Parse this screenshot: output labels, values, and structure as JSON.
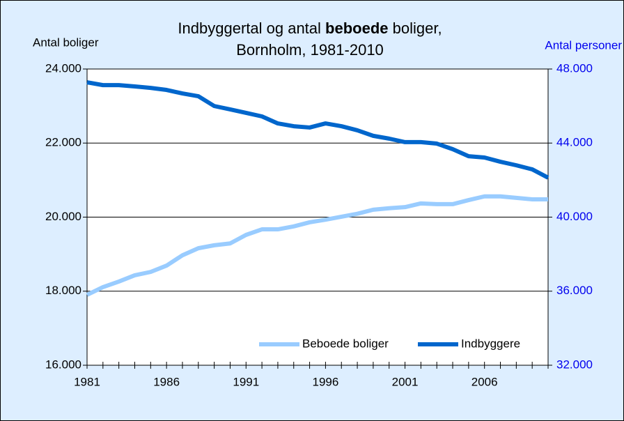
{
  "chart_data": {
    "type": "line",
    "title_parts": [
      "Indbyggertal og antal ",
      "beboede",
      " boliger,"
    ],
    "subtitle": "Bornholm, 1981-2010",
    "y_label": "Antal boliger",
    "y2_label": "Antal personer",
    "x": [
      1981,
      1982,
      1983,
      1984,
      1985,
      1986,
      1987,
      1988,
      1989,
      1990,
      1991,
      1992,
      1993,
      1994,
      1995,
      1996,
      1997,
      1998,
      1999,
      2000,
      2001,
      2002,
      2003,
      2004,
      2005,
      2006,
      2007,
      2008,
      2009,
      2010
    ],
    "xlim": [
      1981,
      2010
    ],
    "xticks": [
      1981,
      1986,
      1991,
      1996,
      2001,
      2006
    ],
    "ylim": [
      16000,
      24000
    ],
    "yticks": [
      {
        "value": 16000,
        "label": "16.000"
      },
      {
        "value": 18000,
        "label": "18.000"
      },
      {
        "value": 20000,
        "label": "20.000"
      },
      {
        "value": 22000,
        "label": "22.000"
      },
      {
        "value": 24000,
        "label": "24.000"
      }
    ],
    "y2lim": [
      32000,
      48000
    ],
    "y2ticks": [
      {
        "value": 32000,
        "label": "32.000"
      },
      {
        "value": 36000,
        "label": "36.000"
      },
      {
        "value": 40000,
        "label": "40.000"
      },
      {
        "value": 44000,
        "label": "44.000"
      },
      {
        "value": 48000,
        "label": "48.000"
      }
    ],
    "grid": true,
    "legend": "lower right",
    "series": [
      {
        "name": "Beboede boliger",
        "color": "#99ccff",
        "values": [
          17900,
          18110,
          18260,
          18430,
          18520,
          18690,
          18970,
          19160,
          19240,
          19290,
          19520,
          19670,
          19670,
          19750,
          19860,
          19930,
          20010,
          20090,
          20200,
          20240,
          20270,
          20370,
          20350,
          20350,
          20460,
          20560,
          20560,
          20520,
          20480,
          20480
        ]
      },
      {
        "name": "Indbyggere",
        "color": "#0066cc",
        "axis": "y2",
        "values": [
          47280,
          47130,
          47130,
          47060,
          46980,
          46870,
          46680,
          46530,
          46000,
          45820,
          45630,
          45440,
          45060,
          44910,
          44840,
          45060,
          44910,
          44690,
          44390,
          44240,
          44050,
          44050,
          43970,
          43670,
          43290,
          43220,
          42990,
          42800,
          42580,
          42130
        ]
      }
    ]
  }
}
